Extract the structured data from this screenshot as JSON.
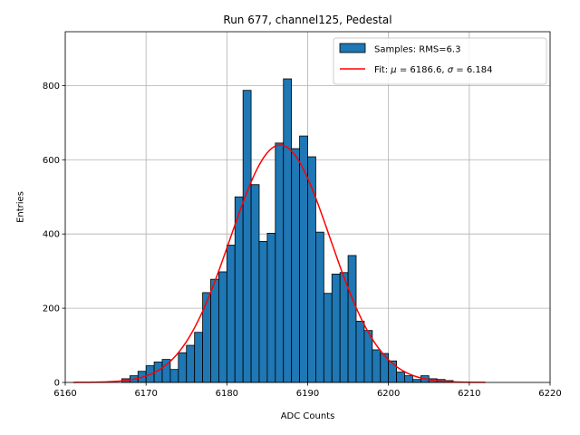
{
  "chart_data": {
    "type": "bar",
    "title": "Run 677, channel125, Pedestal",
    "xlabel": "ADC Counts",
    "ylabel": "Entries",
    "xlim": [
      6160,
      6220
    ],
    "ylim": [
      0,
      945
    ],
    "x_ticks": [
      6160,
      6170,
      6180,
      6190,
      6200,
      6210,
      6220
    ],
    "y_ticks": [
      0,
      200,
      400,
      600,
      800
    ],
    "grid": true,
    "legend_position": "top-right",
    "colors": {
      "bars": "#1f77b4",
      "bar_edge": "#000000",
      "fit": "#ff0000",
      "grid": "#b0b0b0"
    },
    "histogram": {
      "name": "Samples: RMS=6.3",
      "bin_width": 1,
      "bin_starts": [
        6167,
        6168,
        6169,
        6170,
        6171,
        6172,
        6173,
        6174,
        6175,
        6176,
        6177,
        6178,
        6179,
        6180,
        6181,
        6182,
        6183,
        6184,
        6185,
        6186,
        6187,
        6188,
        6189,
        6190,
        6191,
        6192,
        6193,
        6194,
        6195,
        6196,
        6197,
        6198,
        6199,
        6200,
        6201,
        6202,
        6203,
        6204,
        6205,
        6206,
        6207
      ],
      "values": [
        10,
        18,
        30,
        45,
        55,
        62,
        35,
        80,
        100,
        135,
        242,
        278,
        298,
        370,
        500,
        787,
        533,
        380,
        402,
        645,
        818,
        630,
        664,
        608,
        405,
        240,
        292,
        296,
        342,
        165,
        140,
        88,
        78,
        58,
        28,
        18,
        8,
        18,
        10,
        8,
        5
      ]
    },
    "fit": {
      "name_prefix": "Fit: ",
      "mu_symbol": "μ",
      "sigma_symbol": "σ",
      "mu_value": "6186.6",
      "sigma_value": "6.184",
      "mu": 6186.6,
      "sigma": 6.184,
      "amplitude": 640,
      "x_range": [
        6161,
        6212
      ]
    }
  }
}
